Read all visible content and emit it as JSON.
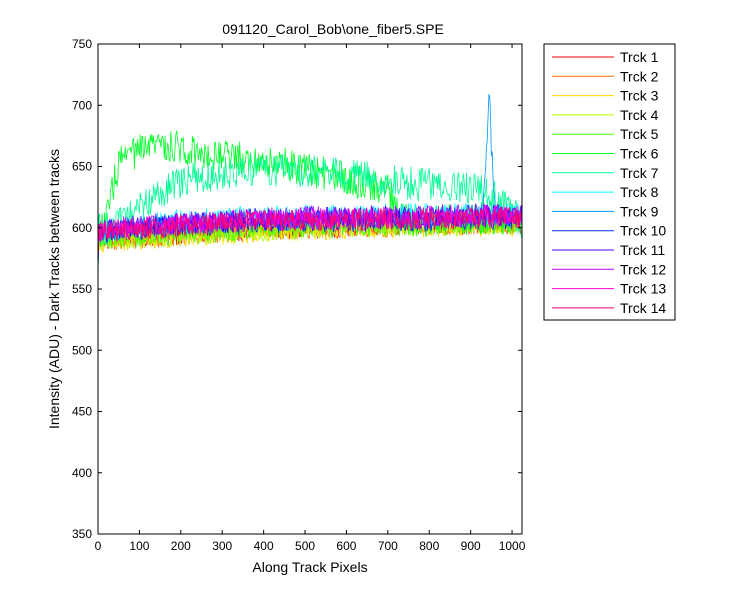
{
  "chart_data": {
    "type": "line",
    "title": "091120_Carol_Bob\\one_fiber5.SPE",
    "xlabel": "Along Track Pixels",
    "ylabel": "Intensity (ADU) - Dark Tracks between tracks",
    "xlim": [
      0,
      1024
    ],
    "ylim": [
      350,
      750
    ],
    "xticks": [
      0,
      100,
      200,
      300,
      400,
      500,
      600,
      700,
      800,
      900,
      1000
    ],
    "yticks": [
      350,
      400,
      450,
      500,
      550,
      600,
      650,
      700,
      750
    ],
    "grid": false,
    "legend_position": "outside-top-right",
    "series": [
      {
        "name": "Trck 1",
        "color": "#ff0000",
        "x": [
          0,
          100,
          200,
          300,
          400,
          500,
          600,
          700,
          800,
          900,
          1024
        ],
        "y": [
          590,
          593,
          595,
          597,
          599,
          600,
          601,
          602,
          603,
          603,
          604
        ]
      },
      {
        "name": "Trck 2",
        "color": "#ff6e00",
        "x": [
          0,
          100,
          200,
          300,
          400,
          500,
          600,
          700,
          800,
          900,
          1024
        ],
        "y": [
          590,
          592,
          594,
          596,
          598,
          600,
          601,
          601,
          602,
          603,
          603
        ]
      },
      {
        "name": "Trck 3",
        "color": "#ffdc00",
        "x": [
          0,
          100,
          200,
          300,
          400,
          500,
          600,
          700,
          800,
          900,
          1024
        ],
        "y": [
          588,
          591,
          593,
          595,
          597,
          598,
          599,
          600,
          601,
          602,
          602
        ]
      },
      {
        "name": "Trck 4",
        "color": "#b4ff00",
        "x": [
          0,
          100,
          200,
          300,
          400,
          500,
          600,
          700,
          800,
          900,
          1024
        ],
        "y": [
          589,
          592,
          594,
          596,
          598,
          599,
          600,
          601,
          602,
          602,
          603
        ]
      },
      {
        "name": "Trck 5",
        "color": "#46ff00",
        "x": [
          0,
          100,
          200,
          300,
          400,
          500,
          600,
          700,
          800,
          900,
          1024
        ],
        "y": [
          591,
          593,
          595,
          597,
          599,
          600,
          601,
          602,
          603,
          604,
          604
        ]
      },
      {
        "name": "Trck 6",
        "color": "#00ff28",
        "x": [
          0,
          20,
          40,
          60,
          100,
          150,
          200,
          250,
          300,
          350,
          400,
          450,
          500,
          550,
          600,
          650,
          700,
          720,
          760,
          800,
          900,
          1024
        ],
        "y": [
          595,
          605,
          640,
          658,
          662,
          668,
          665,
          662,
          660,
          657,
          655,
          652,
          648,
          644,
          640,
          636,
          632,
          612,
          605,
          606,
          607,
          608
        ]
      },
      {
        "name": "Trck 7",
        "color": "#00ff96",
        "x": [
          0,
          30,
          60,
          90,
          130,
          180,
          230,
          300,
          350,
          400,
          450,
          500,
          550,
          600,
          650,
          700,
          750,
          800,
          850,
          900,
          940,
          1024
        ],
        "y": [
          598,
          600,
          603,
          612,
          625,
          633,
          640,
          645,
          647,
          648,
          647,
          646,
          645,
          643,
          641,
          638,
          636,
          635,
          633,
          631,
          630,
          604
        ]
      },
      {
        "name": "Trck 8",
        "color": "#00ffff",
        "x": [
          0,
          100,
          200,
          300,
          400,
          500,
          600,
          700,
          800,
          900,
          1024
        ],
        "y": [
          597,
          602,
          606,
          608,
          609,
          610,
          610,
          611,
          611,
          611,
          611
        ]
      },
      {
        "name": "Trck 9",
        "color": "#0096ff",
        "x": [
          0,
          100,
          200,
          300,
          400,
          500,
          600,
          700,
          800,
          900,
          930,
          940,
          945,
          950,
          960,
          1024
        ],
        "y": [
          596,
          600,
          603,
          605,
          606,
          607,
          607,
          608,
          608,
          609,
          612,
          680,
          712,
          665,
          610,
          608
        ]
      },
      {
        "name": "Trck 10",
        "color": "#0028ff",
        "x": [
          0,
          100,
          200,
          300,
          400,
          500,
          600,
          700,
          800,
          900,
          1024
        ],
        "y": [
          595,
          599,
          601,
          603,
          604,
          605,
          605,
          606,
          606,
          607,
          607
        ]
      },
      {
        "name": "Trck 11",
        "color": "#4600ff",
        "x": [
          0,
          100,
          200,
          300,
          400,
          500,
          600,
          700,
          800,
          900,
          1024
        ],
        "y": [
          597,
          601,
          603,
          605,
          607,
          608,
          608,
          609,
          609,
          610,
          610
        ]
      },
      {
        "name": "Trck 12",
        "color": "#b400ff",
        "x": [
          0,
          100,
          200,
          300,
          400,
          500,
          600,
          700,
          800,
          900,
          1024
        ],
        "y": [
          598,
          602,
          604,
          606,
          608,
          609,
          609,
          610,
          610,
          611,
          611
        ]
      },
      {
        "name": "Trck 13",
        "color": "#ff00dc",
        "x": [
          0,
          100,
          200,
          300,
          400,
          500,
          600,
          700,
          800,
          900,
          1024
        ],
        "y": [
          597,
          600,
          602,
          604,
          606,
          607,
          607,
          608,
          608,
          609,
          609
        ]
      },
      {
        "name": "Trck 14",
        "color": "#ff006e",
        "x": [
          0,
          100,
          200,
          300,
          400,
          500,
          600,
          700,
          800,
          900,
          1024
        ],
        "y": [
          596,
          599,
          601,
          603,
          605,
          606,
          606,
          607,
          607,
          608,
          608
        ]
      }
    ]
  }
}
